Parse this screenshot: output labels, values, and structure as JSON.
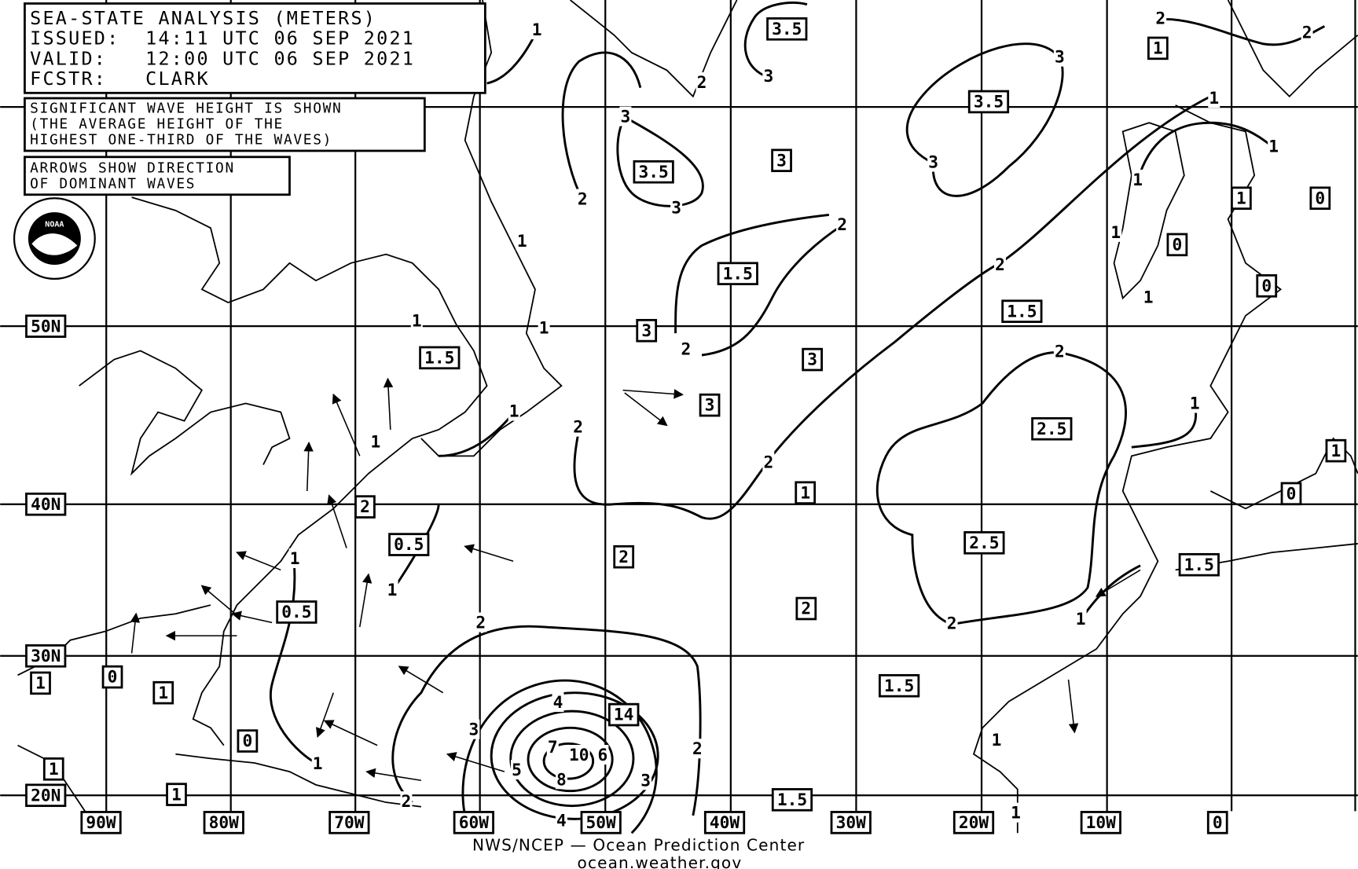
{
  "header": {
    "title": "SEA-STATE ANALYSIS (METERS)",
    "issued": "ISSUED:  14:11 UTC 06 SEP 2021",
    "valid": "VALID:   12:00 UTC 06 SEP 2021",
    "forecaster": "FCSTR:   CLARK"
  },
  "notes": {
    "wave_height": [
      "SIGNIFICANT WAVE HEIGHT IS SHOWN",
      "(THE AVERAGE HEIGHT OF THE",
      "HIGHEST ONE-THIRD OF THE WAVES)"
    ],
    "arrows": [
      "ARROWS SHOW DIRECTION",
      "OF DOMINANT WAVES"
    ]
  },
  "lat_labels": [
    "50N",
    "40N",
    "30N",
    "20N"
  ],
  "lon_labels": [
    "90W",
    "80W",
    "70W",
    "60W",
    "50W",
    "40W",
    "30W",
    "20W",
    "10W",
    "0"
  ],
  "boxed_values": [
    3.5,
    1,
    3.5,
    3,
    3.5,
    1,
    0,
    0,
    1.5,
    0,
    1.5,
    3,
    1.5,
    3,
    3,
    2.5,
    1,
    2,
    1,
    0,
    0.5,
    2,
    2.5,
    1.5,
    0.5,
    2,
    1,
    0,
    1,
    1.5,
    14,
    0,
    1,
    1,
    1.5
  ],
  "contour_labels": [
    1,
    2,
    2,
    3,
    2,
    3,
    3,
    1,
    1,
    3,
    3,
    2,
    2,
    1,
    2,
    1,
    1,
    1,
    1,
    1,
    2,
    2,
    1,
    2,
    1,
    1,
    2,
    1,
    1,
    2,
    2,
    1,
    4,
    3,
    7,
    10,
    6,
    8,
    5,
    3,
    2,
    1,
    1,
    2,
    4,
    1
  ],
  "footer": [
    "NWS/NCEP — Ocean Prediction Center",
    "ocean.weather.gov"
  ]
}
